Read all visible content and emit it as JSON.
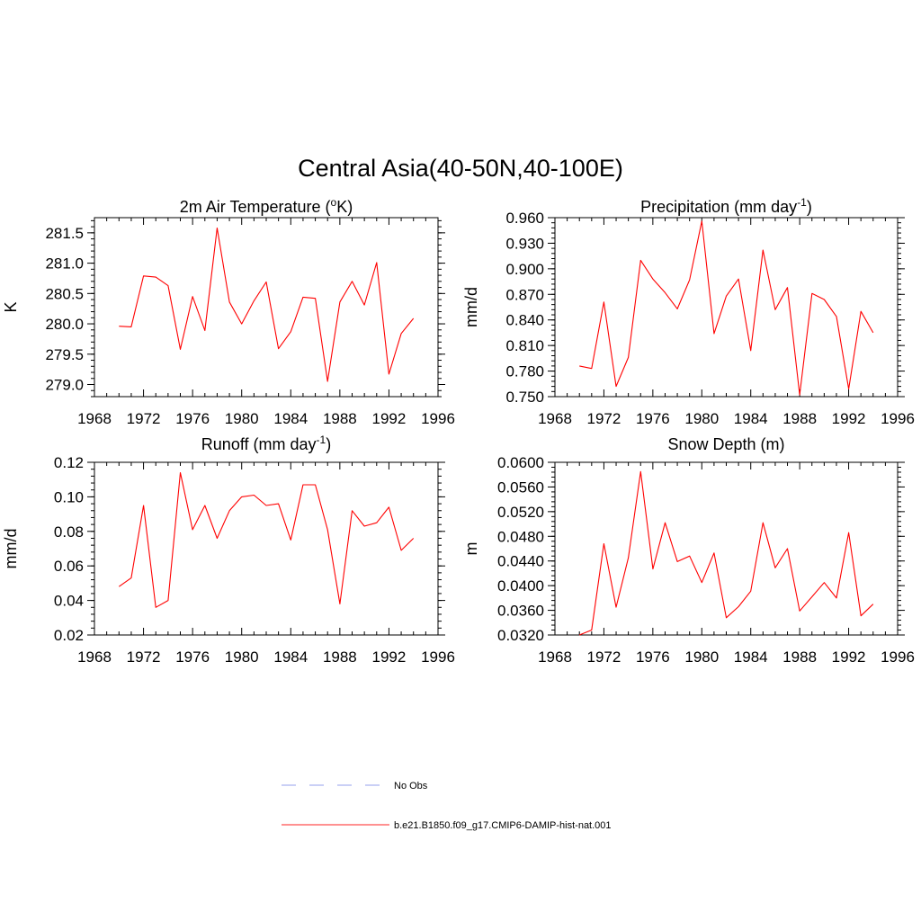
{
  "figure": {
    "title": "Central Asia(40-50N,40-100E)"
  },
  "legend": [
    {
      "label": "No Obs",
      "color": "#aab4f0",
      "dash": "dashed"
    },
    {
      "label": "b.e21.B1850.f09_g17.CMIP6-DAMIP-hist-nat.001",
      "color": "#ff4f4f",
      "dash": "solid"
    }
  ],
  "chart_data": [
    {
      "type": "line",
      "title": "2m Air Temperature (",
      "title_sup": "o",
      "title_after": "K)",
      "ylabel": "K",
      "xlim": [
        1968,
        1996
      ],
      "ylim": [
        278.8,
        281.75
      ],
      "x_ticks": [
        "1968",
        "1972",
        "1976",
        "1980",
        "1984",
        "1988",
        "1992",
        "1996"
      ],
      "y_ticks": [
        {
          "v": 279.0,
          "label": "279.0"
        },
        {
          "v": 279.5,
          "label": "279.5"
        },
        {
          "v": 280.0,
          "label": "280.0"
        },
        {
          "v": 280.5,
          "label": "280.5"
        },
        {
          "v": 281.0,
          "label": "281.0"
        },
        {
          "v": 281.5,
          "label": "281.5"
        }
      ],
      "y_minor_step": 0.1,
      "series": [
        {
          "color": "#ff0000",
          "x": [
            1970,
            1971,
            1972,
            1973,
            1974,
            1975,
            1976,
            1977,
            1978,
            1979,
            1980,
            1981,
            1982,
            1983,
            1984,
            1985,
            1986,
            1987,
            1988,
            1989,
            1990,
            1991,
            1992,
            1993,
            1994
          ],
          "y": [
            279.96,
            279.95,
            280.79,
            280.77,
            280.63,
            279.58,
            280.45,
            279.89,
            281.58,
            280.36,
            280.0,
            280.38,
            280.69,
            279.59,
            279.87,
            280.44,
            280.42,
            279.05,
            280.36,
            280.7,
            280.31,
            281.01,
            279.17,
            279.84,
            280.09
          ]
        }
      ]
    },
    {
      "type": "line",
      "title": "Precipitation (mm day",
      "title_sup": "-1",
      "title_after": ")",
      "ylabel": "mm/d",
      "xlim": [
        1968,
        1996
      ],
      "ylim": [
        0.75,
        0.96
      ],
      "x_ticks": [
        "1968",
        "1972",
        "1976",
        "1980",
        "1984",
        "1988",
        "1992",
        "1996"
      ],
      "y_ticks": [
        {
          "v": 0.75,
          "label": "0.750"
        },
        {
          "v": 0.78,
          "label": "0.780"
        },
        {
          "v": 0.81,
          "label": "0.810"
        },
        {
          "v": 0.84,
          "label": "0.840"
        },
        {
          "v": 0.87,
          "label": "0.870"
        },
        {
          "v": 0.9,
          "label": "0.900"
        },
        {
          "v": 0.93,
          "label": "0.930"
        },
        {
          "v": 0.96,
          "label": "0.960"
        }
      ],
      "y_minor_step": 0.006,
      "series": [
        {
          "color": "#ff0000",
          "x": [
            1970,
            1971,
            1972,
            1973,
            1974,
            1975,
            1976,
            1977,
            1978,
            1979,
            1980,
            1981,
            1982,
            1983,
            1984,
            1985,
            1986,
            1987,
            1988,
            1989,
            1990,
            1991,
            1992,
            1993,
            1994
          ],
          "y": [
            0.786,
            0.783,
            0.861,
            0.762,
            0.796,
            0.91,
            0.888,
            0.872,
            0.853,
            0.887,
            0.956,
            0.824,
            0.868,
            0.888,
            0.804,
            0.922,
            0.852,
            0.878,
            0.752,
            0.871,
            0.864,
            0.844,
            0.759,
            0.85,
            0.825
          ]
        }
      ]
    },
    {
      "type": "line",
      "title": "Runoff (mm day",
      "title_sup": "-1",
      "title_after": ")",
      "ylabel": "mm/d",
      "xlim": [
        1968,
        1996
      ],
      "ylim": [
        0.02,
        0.12
      ],
      "x_ticks": [
        "1968",
        "1972",
        "1976",
        "1980",
        "1984",
        "1988",
        "1992",
        "1996"
      ],
      "y_ticks": [
        {
          "v": 0.02,
          "label": "0.02"
        },
        {
          "v": 0.04,
          "label": "0.04"
        },
        {
          "v": 0.06,
          "label": "0.06"
        },
        {
          "v": 0.08,
          "label": "0.08"
        },
        {
          "v": 0.1,
          "label": "0.10"
        },
        {
          "v": 0.12,
          "label": "0.12"
        }
      ],
      "y_minor_step": 0.004,
      "series": [
        {
          "color": "#ff0000",
          "x": [
            1970,
            1971,
            1972,
            1973,
            1974,
            1975,
            1976,
            1977,
            1978,
            1979,
            1980,
            1981,
            1982,
            1983,
            1984,
            1985,
            1986,
            1987,
            1988,
            1989,
            1990,
            1991,
            1992,
            1993,
            1994
          ],
          "y": [
            0.048,
            0.053,
            0.095,
            0.036,
            0.04,
            0.114,
            0.081,
            0.095,
            0.076,
            0.092,
            0.1,
            0.101,
            0.095,
            0.096,
            0.075,
            0.107,
            0.107,
            0.081,
            0.038,
            0.092,
            0.083,
            0.085,
            0.094,
            0.069,
            0.076
          ]
        }
      ]
    },
    {
      "type": "line",
      "title": "Snow Depth (m)",
      "title_sup": "",
      "title_after": "",
      "ylabel": "m",
      "xlim": [
        1968,
        1996
      ],
      "ylim": [
        0.032,
        0.06
      ],
      "x_ticks": [
        "1968",
        "1972",
        "1976",
        "1980",
        "1984",
        "1988",
        "1992",
        "1996"
      ],
      "y_ticks": [
        {
          "v": 0.032,
          "label": "0.0320"
        },
        {
          "v": 0.036,
          "label": "0.0360"
        },
        {
          "v": 0.04,
          "label": "0.0400"
        },
        {
          "v": 0.044,
          "label": "0.0440"
        },
        {
          "v": 0.048,
          "label": "0.0480"
        },
        {
          "v": 0.052,
          "label": "0.0520"
        },
        {
          "v": 0.056,
          "label": "0.0560"
        },
        {
          "v": 0.06,
          "label": "0.0600"
        }
      ],
      "y_minor_step": 0.0008,
      "series": [
        {
          "color": "#ff0000",
          "x": [
            1970,
            1971,
            1972,
            1973,
            1974,
            1975,
            1976,
            1977,
            1978,
            1979,
            1980,
            1981,
            1982,
            1983,
            1984,
            1985,
            1986,
            1987,
            1988,
            1989,
            1990,
            1991,
            1992,
            1993,
            1994
          ],
          "y": [
            0.032,
            0.0328,
            0.0468,
            0.0365,
            0.0445,
            0.0585,
            0.0427,
            0.0502,
            0.0439,
            0.0448,
            0.0405,
            0.0453,
            0.0348,
            0.0366,
            0.0391,
            0.0502,
            0.0429,
            0.046,
            0.0359,
            0.0382,
            0.0405,
            0.038,
            0.0486,
            0.0351,
            0.037
          ]
        }
      ]
    }
  ]
}
